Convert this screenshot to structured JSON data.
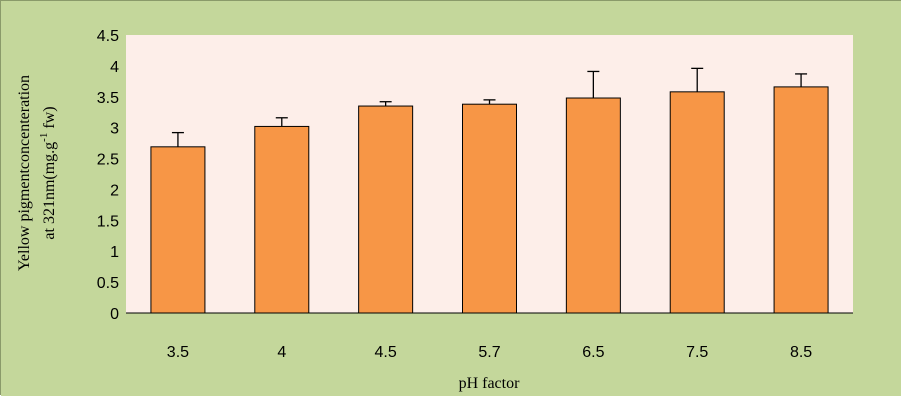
{
  "colors": {
    "outer_background": "#c4d79b",
    "plot_background": "#fdeee9",
    "bar_fill": "#f79646",
    "bar_stroke": "#000000"
  },
  "chart_data": {
    "type": "bar",
    "title": "",
    "xlabel": "pH factor",
    "ylabel_line1": "Yellow pigmentconcenteration",
    "ylabel_line2_prefix": "at 321nm(mg.g",
    "ylabel_line2_superscript": "-1",
    "ylabel_line2_suffix": " fw)",
    "categories": [
      "3.5",
      "4",
      "4.5",
      "5.7",
      "6.5",
      "7.5",
      "8.5"
    ],
    "values": [
      2.69,
      3.02,
      3.35,
      3.38,
      3.48,
      3.58,
      3.66
    ],
    "error_upper": [
      0.23,
      0.14,
      0.07,
      0.07,
      0.43,
      0.38,
      0.21
    ],
    "ylim": [
      0,
      4.5
    ],
    "yticks": [
      "0",
      "0.5",
      "1",
      "1.5",
      "2",
      "2.5",
      "3",
      "3.5",
      "4",
      "4.5"
    ],
    "grid": false,
    "legend": "none"
  }
}
